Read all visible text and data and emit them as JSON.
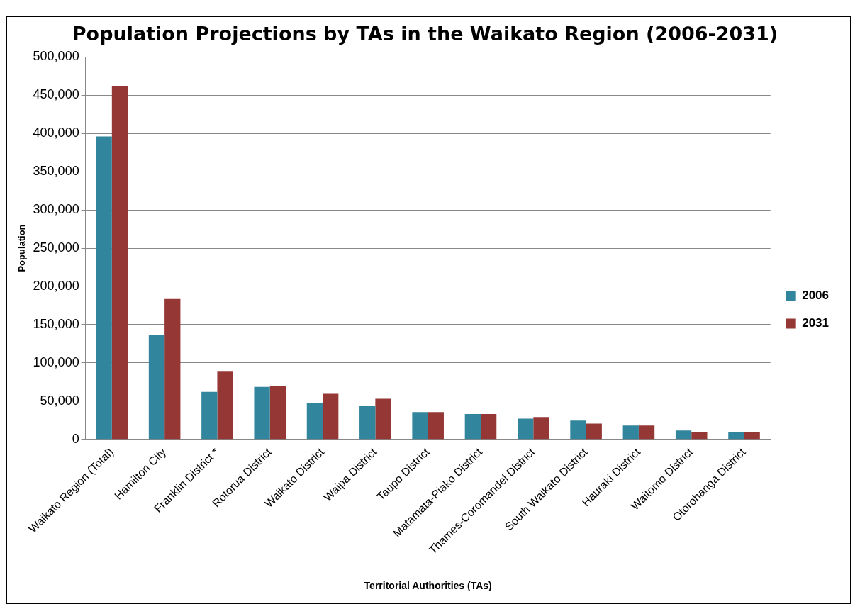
{
  "chart_data": {
    "type": "bar",
    "title": "Population Projections by TAs in the Waikato Region (2006-2031)",
    "xlabel": "Territorial Authorities (TAs)",
    "ylabel": "Population",
    "categories": [
      "Waikato Region (Total)",
      "Hamilton City",
      "Franklin District *",
      "Rotorua District",
      "Waikato District",
      "Waipa District",
      "Taupo District",
      "Matamata-Piako District",
      "Thames-Coromandel District",
      "South Waikato District",
      "Hauraki District",
      "Waitomo District",
      "Otorohanga District"
    ],
    "series": [
      {
        "name": "2006",
        "color": "#31859c",
        "values": [
          396000,
          136000,
          62000,
          68500,
          47000,
          44000,
          35500,
          33000,
          27000,
          24500,
          18000,
          11500,
          9500
        ]
      },
      {
        "name": "2031",
        "color": "#953735",
        "values": [
          461500,
          183500,
          88500,
          70000,
          59500,
          53000,
          35500,
          33000,
          29000,
          20500,
          18000,
          9500,
          9500
        ]
      }
    ],
    "ylim": [
      0,
      500000
    ],
    "yticks": [
      {
        "value": 0,
        "label": "0"
      },
      {
        "value": 50000,
        "label": "50,000"
      },
      {
        "value": 100000,
        "label": "100,000"
      },
      {
        "value": 150000,
        "label": "150,000"
      },
      {
        "value": 200000,
        "label": "200,000"
      },
      {
        "value": 250000,
        "label": "250,000"
      },
      {
        "value": 300000,
        "label": "300,000"
      },
      {
        "value": 350000,
        "label": "350,000"
      },
      {
        "value": 400000,
        "label": "400,000"
      },
      {
        "value": 450000,
        "label": "450,000"
      },
      {
        "value": 500000,
        "label": "500,000"
      }
    ],
    "grid": "y",
    "legend": "right"
  }
}
